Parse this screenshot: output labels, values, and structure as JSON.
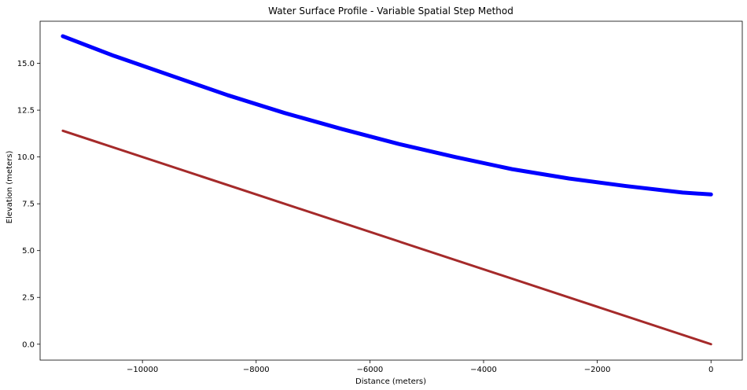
{
  "chart_data": {
    "type": "line",
    "title": "Water Surface Profile - Variable Spatial Step Method",
    "xlabel": "Distance (meters)",
    "ylabel": "Elevation (meters)",
    "xlim": [
      -11800,
      550
    ],
    "ylim": [
      -0.85,
      17.25
    ],
    "xticks": [
      -10000,
      -8000,
      -6000,
      -4000,
      -2000,
      0
    ],
    "xtick_labels": [
      "−10000",
      "−8000",
      "−6000",
      "−4000",
      "−2000",
      "0"
    ],
    "yticks": [
      0.0,
      2.5,
      5.0,
      7.5,
      10.0,
      12.5,
      15.0
    ],
    "ytick_labels": [
      "0.0",
      "2.5",
      "5.0",
      "7.5",
      "10.0",
      "12.5",
      "15.0"
    ],
    "grid": false,
    "series": [
      {
        "color": "#0000ff",
        "x": [
          -11400,
          -10500,
          -9500,
          -8500,
          -7500,
          -6500,
          -5500,
          -4500,
          -3500,
          -2500,
          -1500,
          -500,
          0
        ],
        "y": [
          16.45,
          15.4,
          14.35,
          13.3,
          12.35,
          11.5,
          10.7,
          10.0,
          9.35,
          8.85,
          8.45,
          8.1,
          8.0
        ]
      },
      {
        "color": "#a52a2a",
        "x": [
          -11400,
          0
        ],
        "y": [
          11.4,
          0.0
        ]
      }
    ]
  }
}
